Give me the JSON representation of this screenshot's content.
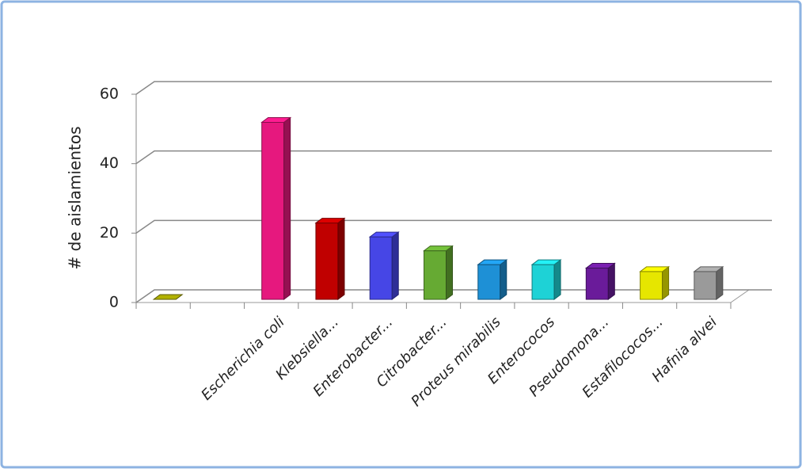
{
  "chart_data": {
    "type": "bar3d",
    "y_label": "# de aislamientos",
    "categories": [
      null,
      null,
      "Escherichia coli",
      "Klebsiella...",
      "Enterobacter...",
      "Citrobacter...",
      "Proteus mirabilis",
      "Enterococos",
      "Pseudomona...",
      "Estafilococos...",
      "Hafnia alvei"
    ],
    "values": [
      0,
      null,
      51,
      22,
      18,
      14,
      10,
      10,
      9,
      8,
      8
    ],
    "colors": [
      "#9a9a00",
      null,
      "#e6187e",
      "#c00000",
      "#4646e6",
      "#66aa33",
      "#1e90d6",
      "#1ed2d6",
      "#6a1b9a",
      "#e6e600",
      "#9a9a9a"
    ],
    "ylim": [
      0,
      60
    ],
    "yticks": [
      0,
      20,
      40,
      60
    ],
    "grid": true
  }
}
